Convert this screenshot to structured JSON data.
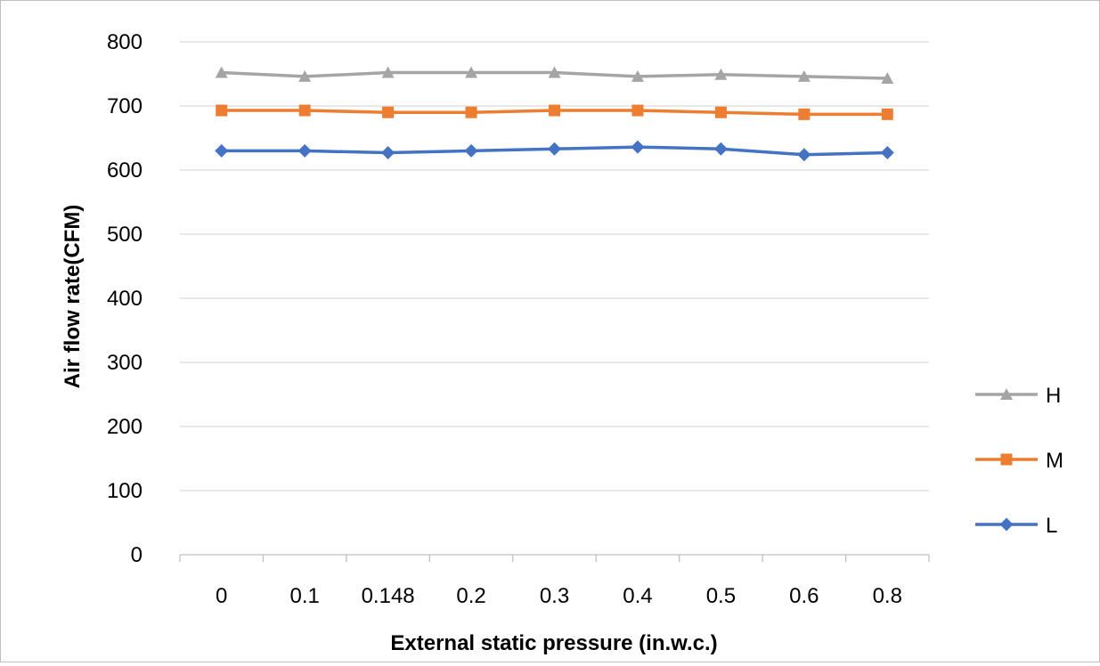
{
  "chart_data": {
    "type": "line",
    "title": "",
    "xlabel": "External static pressure (in.w.c.)",
    "ylabel": "Air flow rate(CFM)",
    "categories": [
      "0",
      "0.1",
      "0.148",
      "0.2",
      "0.3",
      "0.4",
      "0.5",
      "0.6",
      "0.8"
    ],
    "ylim": [
      0,
      800
    ],
    "yticks": [
      "0",
      "100",
      "200",
      "300",
      "400",
      "500",
      "600",
      "700",
      "800"
    ],
    "grid": "horizontal",
    "legend_position": "right",
    "series": [
      {
        "name": "H",
        "marker": "triangle",
        "color": "#a5a5a5",
        "values": [
          752,
          746,
          752,
          752,
          752,
          746,
          749,
          746,
          743
        ]
      },
      {
        "name": "M",
        "marker": "square",
        "color": "#ed7d31",
        "values": [
          693,
          693,
          690,
          690,
          693,
          693,
          690,
          687,
          687
        ]
      },
      {
        "name": "L",
        "marker": "diamond",
        "color": "#4472c4",
        "values": [
          630,
          630,
          627,
          630,
          633,
          636,
          633,
          624,
          627
        ]
      }
    ]
  }
}
